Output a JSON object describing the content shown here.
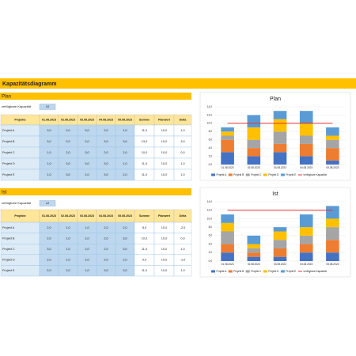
{
  "title": "Kapazitätsdiagramm",
  "plan": {
    "label": "Plan",
    "capacity_label": "verfügbare Kapazität",
    "capacity": "10",
    "table": {
      "header": [
        "Projekte",
        "01.08.2023",
        "02.08.2023",
        "03.08.2023",
        "04.08.2023",
        "05.08.2023",
        "Summe",
        "Planwert",
        "Delta"
      ],
      "rows": [
        [
          "Projekt A",
          "3,0",
          "2,0",
          "3,0",
          "2,0",
          "1,0",
          "11,0",
          "10,0",
          "1,0"
        ],
        [
          "Projekt B",
          "3,0",
          "2,0",
          "2,0",
          "3,0",
          "3,0",
          "13,0",
          "10,0",
          "3,0"
        ],
        [
          "Projekt C",
          "1,0",
          "2,0",
          "3,0",
          "2,0",
          "2,0",
          "10,0",
          "10,0",
          "0,0"
        ],
        [
          "Projekt D",
          "1,0",
          "3,0",
          "3,0",
          "3,0",
          "1,0",
          "11,0",
          "10,0",
          "1,0"
        ],
        [
          "Projekt E",
          "1,0",
          "3,0",
          "2,0",
          "3,0",
          "2,0",
          "11,0",
          "10,0",
          "1,0"
        ]
      ]
    }
  },
  "ist": {
    "label": "Ist",
    "capacity_label": "verfügbare Kapazität",
    "capacity": "12",
    "table": {
      "header": [
        "Projekte",
        "01.08.2023",
        "02.08.2023",
        "03.08.2023",
        "04.08.2023",
        "05.08.2023",
        "Summe",
        "Planwert",
        "Delta"
      ],
      "rows": [
        [
          "Projekt A",
          "2,0",
          "1,0",
          "1,0",
          "2,0",
          "2,0",
          "8,0",
          "10,0",
          "-2,0"
        ],
        [
          "Projekt B",
          "2,0",
          "1,0",
          "2,0",
          "2,0",
          "3,0",
          "10,0",
          "10,0",
          "0,0"
        ],
        [
          "Projekt C",
          "3,0",
          "1,0",
          "2,0",
          "2,0",
          "3,0",
          "11,0",
          "10,0",
          "1,0"
        ],
        [
          "Projekt D",
          "2,0",
          "1,0",
          "2,0",
          "2,0",
          "2,0",
          "9,0",
          "10,0",
          "-1,0"
        ],
        [
          "Projekt E",
          "2,0",
          "2,0",
          "1,0",
          "3,0",
          "3,0",
          "11,0",
          "10,0",
          "1,0"
        ]
      ]
    }
  },
  "chart_data": [
    {
      "type": "bar",
      "stacked": true,
      "title": "Plan",
      "categories": [
        "01.08.2023",
        "02.08.2023",
        "03.08.2023",
        "04.08.2023",
        "05.08.2023"
      ],
      "series": [
        {
          "name": "Projekt A",
          "color": "#4472c4",
          "values": [
            3,
            2,
            3,
            2,
            1
          ]
        },
        {
          "name": "Projekt B",
          "color": "#ed7d31",
          "values": [
            3,
            2,
            2,
            3,
            3
          ]
        },
        {
          "name": "Projekt C",
          "color": "#a5a5a5",
          "values": [
            1,
            2,
            3,
            2,
            2
          ]
        },
        {
          "name": "Projekt D",
          "color": "#ffc000",
          "values": [
            1,
            3,
            3,
            3,
            1
          ]
        },
        {
          "name": "Projekt E",
          "color": "#5b9bd5",
          "values": [
            1,
            3,
            2,
            3,
            2
          ]
        }
      ],
      "line": {
        "name": "verfügbare Kapazität",
        "color": "#e03030",
        "value": 10
      },
      "ylim": [
        0,
        14
      ],
      "yticks": [
        {
          "value": 0,
          "label": "0,0"
        },
        {
          "value": 2,
          "label": "2,0"
        },
        {
          "value": 4,
          "label": "4,0"
        },
        {
          "value": 6,
          "label": "6,0"
        },
        {
          "value": 8,
          "label": "8,0"
        },
        {
          "value": 10,
          "label": "10,0"
        },
        {
          "value": 12,
          "label": "12,0"
        },
        {
          "value": 14,
          "label": "14,0"
        }
      ],
      "grid": true
    },
    {
      "type": "bar",
      "stacked": true,
      "title": "Ist",
      "categories": [
        "01.08.2023",
        "02.08.2023",
        "03.08.2023",
        "04.08.2023",
        "05.08.2023"
      ],
      "series": [
        {
          "name": "Projekt A",
          "color": "#4472c4",
          "values": [
            2,
            1,
            1,
            2,
            2
          ]
        },
        {
          "name": "Projekt B",
          "color": "#ed7d31",
          "values": [
            2,
            1,
            2,
            2,
            3
          ]
        },
        {
          "name": "Projekt C",
          "color": "#a5a5a5",
          "values": [
            3,
            1,
            2,
            2,
            3
          ]
        },
        {
          "name": "Projekt D",
          "color": "#ffc000",
          "values": [
            2,
            1,
            2,
            2,
            2
          ]
        },
        {
          "name": "Projekt E",
          "color": "#5b9bd5",
          "values": [
            2,
            2,
            1,
            3,
            3
          ]
        }
      ],
      "line": {
        "name": "verfügbare Kapazität",
        "color": "#e03030",
        "value": 12
      },
      "ylim": [
        0,
        14
      ],
      "yticks": [
        {
          "value": 0,
          "label": "0,0"
        },
        {
          "value": 2,
          "label": "2,0"
        },
        {
          "value": 4,
          "label": "4,0"
        },
        {
          "value": 6,
          "label": "6,0"
        },
        {
          "value": 8,
          "label": "8,0"
        },
        {
          "value": 10,
          "label": "10,0"
        },
        {
          "value": 12,
          "label": "12,0"
        },
        {
          "value": 14,
          "label": "14,0"
        }
      ],
      "grid": true
    }
  ]
}
